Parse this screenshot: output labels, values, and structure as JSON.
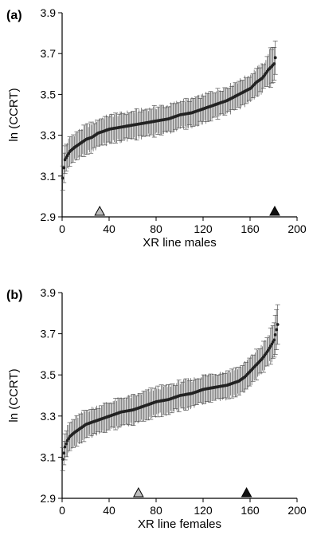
{
  "chart_data": [
    {
      "type": "scatter",
      "panel_label": "(a)",
      "xlabel": "XR line males",
      "ylabel": "ln (CCRT)",
      "xlim": [
        0,
        200
      ],
      "ylim": [
        2.9,
        3.9
      ],
      "xticks": [
        "0",
        "40",
        "80",
        "120",
        "160",
        "200"
      ],
      "yticks": [
        "2.9",
        "3.1",
        "3.3",
        "3.5",
        "3.7",
        "3.9"
      ],
      "n_lines": 182,
      "curve": {
        "x": [
          0,
          1,
          2,
          4,
          6,
          10,
          15,
          20,
          25,
          30,
          35,
          40,
          50,
          60,
          70,
          80,
          90,
          100,
          110,
          120,
          130,
          140,
          150,
          160,
          165,
          170,
          175,
          180,
          182
        ],
        "y": [
          3.09,
          3.14,
          3.18,
          3.2,
          3.22,
          3.24,
          3.26,
          3.28,
          3.29,
          3.31,
          3.32,
          3.33,
          3.34,
          3.35,
          3.36,
          3.37,
          3.38,
          3.4,
          3.41,
          3.43,
          3.45,
          3.47,
          3.5,
          3.53,
          3.56,
          3.58,
          3.62,
          3.65,
          3.71
        ]
      },
      "error_bar_half_width": 0.065,
      "markers": [
        {
          "x": 32,
          "color": "#bdbdbd",
          "label": "light triangle"
        },
        {
          "x": 181,
          "color": "#111111",
          "label": "dark triangle"
        }
      ]
    },
    {
      "type": "scatter",
      "panel_label": "(b)",
      "xlabel": "XR line females",
      "ylabel": "ln (CCRT)",
      "xlim": [
        0,
        200
      ],
      "ylim": [
        2.9,
        3.9
      ],
      "xticks": [
        "0",
        "40",
        "80",
        "120",
        "160",
        "200"
      ],
      "yticks": [
        "2.9",
        "3.1",
        "3.3",
        "3.5",
        "3.7",
        "3.9"
      ],
      "n_lines": 184,
      "curve": {
        "x": [
          0,
          1,
          2,
          4,
          6,
          10,
          15,
          20,
          30,
          40,
          50,
          60,
          70,
          80,
          90,
          100,
          110,
          120,
          130,
          140,
          150,
          155,
          160,
          165,
          170,
          175,
          180,
          184
        ],
        "y": [
          3.09,
          3.12,
          3.15,
          3.18,
          3.2,
          3.22,
          3.24,
          3.26,
          3.28,
          3.3,
          3.32,
          3.33,
          3.35,
          3.37,
          3.38,
          3.4,
          3.41,
          3.43,
          3.44,
          3.45,
          3.47,
          3.49,
          3.52,
          3.55,
          3.58,
          3.62,
          3.67,
          3.77
        ]
      },
      "error_bar_half_width": 0.065,
      "markers": [
        {
          "x": 65,
          "color": "#bdbdbd",
          "label": "light triangle"
        },
        {
          "x": 157,
          "color": "#111111",
          "label": "dark triangle"
        }
      ]
    }
  ]
}
